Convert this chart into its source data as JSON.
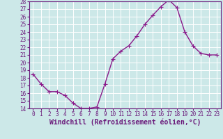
{
  "x": [
    0,
    1,
    2,
    3,
    4,
    5,
    6,
    7,
    8,
    9,
    10,
    11,
    12,
    13,
    14,
    15,
    16,
    17,
    18,
    19,
    20,
    21,
    22,
    23
  ],
  "y": [
    18.5,
    17.2,
    16.2,
    16.2,
    15.7,
    14.7,
    14.0,
    14.0,
    14.2,
    17.2,
    20.5,
    21.5,
    22.2,
    23.5,
    25.0,
    26.2,
    27.3,
    28.2,
    27.2,
    24.0,
    22.2,
    21.2,
    21.0,
    21.0
  ],
  "line_color": "#8b1a8b",
  "marker": "+",
  "marker_size": 4,
  "bg_color": "#cce8e8",
  "grid_color": "#ffffff",
  "xlabel": "Windchill (Refroidissement éolien,°C)",
  "xlim": [
    -0.5,
    23.5
  ],
  "ylim": [
    14,
    28
  ],
  "yticks": [
    14,
    15,
    16,
    17,
    18,
    19,
    20,
    21,
    22,
    23,
    24,
    25,
    26,
    27,
    28
  ],
  "xticks": [
    0,
    1,
    2,
    3,
    4,
    5,
    6,
    7,
    8,
    9,
    10,
    11,
    12,
    13,
    14,
    15,
    16,
    17,
    18,
    19,
    20,
    21,
    22,
    23
  ],
  "tick_fontsize": 5.5,
  "xlabel_fontsize": 7.0,
  "spine_color": "#6b1a7b",
  "line_width": 1.0,
  "marker_edge_width": 0.8
}
